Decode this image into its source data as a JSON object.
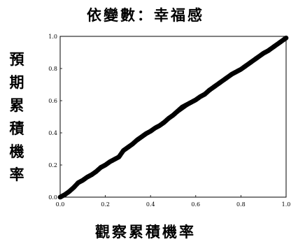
{
  "chart_data": {
    "type": "scatter",
    "title": "依變數：幸福感",
    "xlabel": "觀察累積機率",
    "ylabel": "預期累積機率",
    "xlim": [
      0.0,
      1.0
    ],
    "ylim": [
      0.0,
      1.0
    ],
    "xticks": [
      "0.0",
      "0.2",
      "0.4",
      "0.6",
      "0.8",
      "1.0"
    ],
    "yticks": [
      "0.0",
      "0.2",
      "0.4",
      "0.6",
      "0.8",
      "1.0"
    ],
    "grid": false,
    "legend": "none",
    "reference_line": [
      [
        0.0,
        0.0
      ],
      [
        1.0,
        1.0
      ]
    ],
    "points": {
      "x": [
        0.0,
        0.02,
        0.04,
        0.06,
        0.08,
        0.1,
        0.12,
        0.14,
        0.16,
        0.18,
        0.2,
        0.22,
        0.24,
        0.26,
        0.28,
        0.3,
        0.32,
        0.34,
        0.36,
        0.38,
        0.4,
        0.42,
        0.44,
        0.46,
        0.48,
        0.5,
        0.52,
        0.54,
        0.56,
        0.58,
        0.6,
        0.62,
        0.64,
        0.66,
        0.68,
        0.7,
        0.72,
        0.74,
        0.76,
        0.78,
        0.8,
        0.82,
        0.84,
        0.86,
        0.88,
        0.9,
        0.92,
        0.94,
        0.96,
        0.98,
        1.0
      ],
      "y": [
        0.0,
        0.015,
        0.035,
        0.06,
        0.09,
        0.105,
        0.125,
        0.14,
        0.16,
        0.185,
        0.2,
        0.22,
        0.235,
        0.25,
        0.29,
        0.31,
        0.33,
        0.355,
        0.375,
        0.395,
        0.41,
        0.43,
        0.445,
        0.465,
        0.49,
        0.51,
        0.535,
        0.56,
        0.575,
        0.59,
        0.605,
        0.625,
        0.64,
        0.665,
        0.685,
        0.705,
        0.725,
        0.745,
        0.765,
        0.78,
        0.795,
        0.815,
        0.835,
        0.855,
        0.875,
        0.895,
        0.91,
        0.93,
        0.95,
        0.97,
        0.99
      ]
    },
    "marker_color": "#000000",
    "line_color": "#000000"
  }
}
